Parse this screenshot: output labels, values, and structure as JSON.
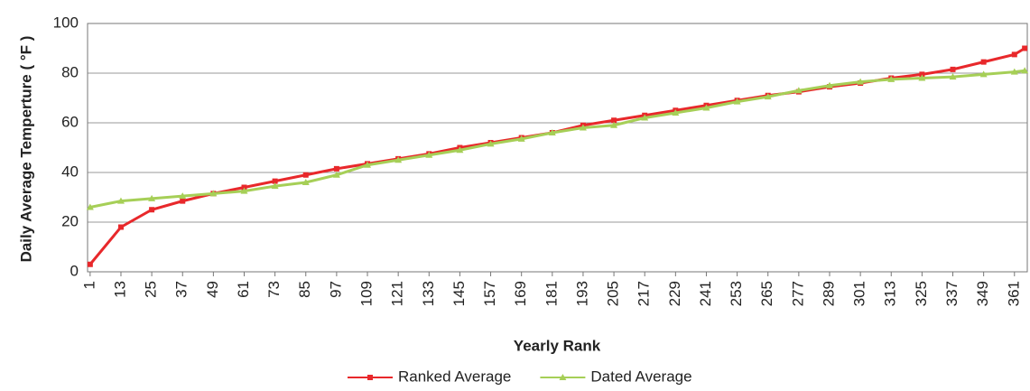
{
  "chart_data": {
    "type": "line",
    "x_label": "Yearly Rank",
    "y_label": "Daily Average Temperture ( °F )",
    "x": [
      1,
      13,
      25,
      37,
      49,
      61,
      73,
      85,
      97,
      109,
      121,
      133,
      145,
      157,
      169,
      181,
      193,
      205,
      217,
      229,
      241,
      253,
      265,
      277,
      289,
      301,
      313,
      325,
      337,
      349,
      361,
      365
    ],
    "series": [
      {
        "name": "Ranked Average",
        "color": "#e8282b",
        "marker": "square",
        "values": [
          3,
          18,
          25,
          28.5,
          31.5,
          34,
          36.5,
          39,
          41.5,
          43.5,
          45.5,
          47.5,
          50,
          52,
          54,
          56,
          59,
          61,
          63,
          65,
          67,
          69,
          71,
          72.5,
          74.5,
          76,
          78,
          79.5,
          81.5,
          84.5,
          87.5,
          90
        ]
      },
      {
        "name": "Dated Average",
        "color": "#a6cf57",
        "marker": "triangle",
        "values": [
          26,
          28.5,
          29.5,
          30.5,
          31.5,
          32.5,
          34.5,
          36,
          39,
          43,
          45,
          47,
          49,
          51.5,
          53.5,
          56,
          58,
          59,
          62,
          64,
          66,
          68.5,
          70.5,
          73,
          75,
          76.5,
          77.5,
          78,
          78.5,
          79.5,
          80.5,
          81
        ]
      }
    ],
    "xlim": [
      0,
      366
    ],
    "xticks": [
      1,
      13,
      25,
      37,
      49,
      61,
      73,
      85,
      97,
      109,
      121,
      133,
      145,
      157,
      169,
      181,
      193,
      205,
      217,
      229,
      241,
      253,
      265,
      277,
      289,
      301,
      313,
      325,
      337,
      349,
      361
    ],
    "ylim": [
      0,
      100
    ],
    "yticks": [
      0,
      20,
      40,
      60,
      80,
      100
    ],
    "grid": true,
    "legend": "bottom"
  }
}
